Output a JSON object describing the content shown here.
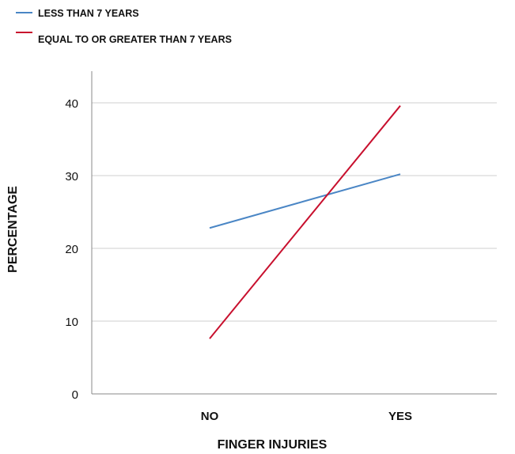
{
  "chart_data": {
    "type": "line",
    "categories": [
      "NO",
      "YES"
    ],
    "series": [
      {
        "name": "LESS THAN 7 YEARS",
        "color": "#4a86c5",
        "values": [
          22.8,
          30.2
        ]
      },
      {
        "name": "EQUAL TO OR GREATER THAN 7 YEARS",
        "color": "#c8102e",
        "values": [
          7.6,
          39.6
        ]
      }
    ],
    "xlabel": "FINGER INJURIES",
    "ylabel": "PERCENTAGE",
    "ylim": [
      0,
      40
    ],
    "yticks": [
      "0",
      "10",
      "20",
      "30",
      "40"
    ],
    "grid": true,
    "legend": "top-left"
  }
}
